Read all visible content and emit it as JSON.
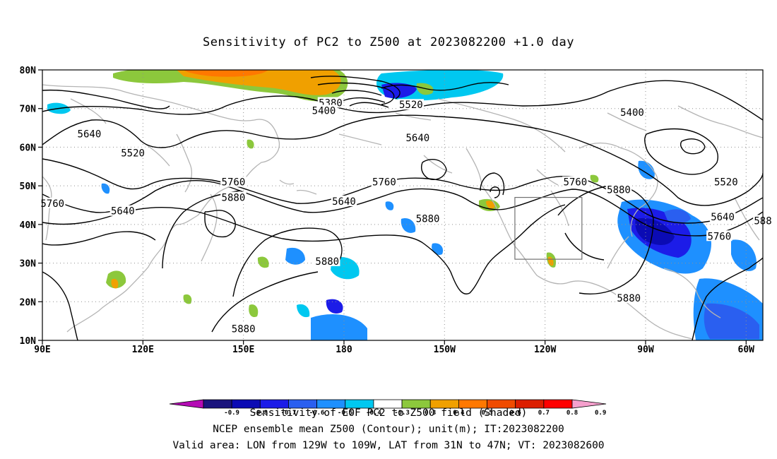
{
  "title": "Sensitivity of PC2 to Z500 at 2023082200 +1.0 day",
  "footer": {
    "line1": "Sensitivity of EOF PC2 to Z500 field (Shaded)",
    "line2": "NCEP ensemble mean Z500 (Contour); unit(m); IT:2023082200",
    "line3": "Valid area: LON from 129W to 109W, LAT from 31N to 47N; VT: 2023082600"
  },
  "map": {
    "lon_range": [
      90,
      305
    ],
    "lat_range": [
      10,
      80
    ],
    "lon_ticks": [
      {
        "lon": 90,
        "label": "90E"
      },
      {
        "lon": 120,
        "label": "120E"
      },
      {
        "lon": 150,
        "label": "150E"
      },
      {
        "lon": 180,
        "label": "180"
      },
      {
        "lon": 210,
        "label": "150W"
      },
      {
        "lon": 240,
        "label": "120W"
      },
      {
        "lon": 270,
        "label": "90W"
      },
      {
        "lon": 300,
        "label": "60W"
      }
    ],
    "lat_ticks": [
      {
        "lat": 10,
        "label": "10N"
      },
      {
        "lat": 20,
        "label": "20N"
      },
      {
        "lat": 30,
        "label": "30N"
      },
      {
        "lat": 40,
        "label": "40N"
      },
      {
        "lat": 50,
        "label": "50N"
      },
      {
        "lat": 60,
        "label": "60N"
      },
      {
        "lat": 70,
        "label": "70N"
      },
      {
        "lat": 80,
        "label": "80N"
      }
    ],
    "valid_box": {
      "lon_min": 231,
      "lon_max": 251,
      "lat_min": 31,
      "lat_max": 47
    },
    "contour_labels": [
      {
        "text": "5640",
        "lon": 104,
        "lat": 63.5
      },
      {
        "text": "5520",
        "lon": 117,
        "lat": 58.5
      },
      {
        "text": "5640",
        "lon": 114,
        "lat": 43.5
      },
      {
        "text": "5760",
        "lon": 93,
        "lat": 45.5
      },
      {
        "text": "5760",
        "lon": 147,
        "lat": 51
      },
      {
        "text": "5880",
        "lon": 147,
        "lat": 47
      },
      {
        "text": "5880",
        "lon": 150,
        "lat": 13
      },
      {
        "text": "5380",
        "lon": 176,
        "lat": 71.5
      },
      {
        "text": "5400",
        "lon": 174,
        "lat": 69.5
      },
      {
        "text": "5520",
        "lon": 200,
        "lat": 71
      },
      {
        "text": "5640",
        "lon": 202,
        "lat": 62.5
      },
      {
        "text": "5640",
        "lon": 180,
        "lat": 46
      },
      {
        "text": "5760",
        "lon": 192,
        "lat": 51
      },
      {
        "text": "5880",
        "lon": 205,
        "lat": 41.5
      },
      {
        "text": "5880",
        "lon": 175,
        "lat": 30.5
      },
      {
        "text": "5760",
        "lon": 249,
        "lat": 51
      },
      {
        "text": "5880",
        "lon": 262,
        "lat": 49
      },
      {
        "text": "5880",
        "lon": 265,
        "lat": 21
      },
      {
        "text": "5400",
        "lon": 266,
        "lat": 69
      },
      {
        "text": "5520",
        "lon": 294,
        "lat": 51
      },
      {
        "text": "5640",
        "lon": 293,
        "lat": 42
      },
      {
        "text": "5760",
        "lon": 292,
        "lat": 37
      },
      {
        "text": "588",
        "lon": 305,
        "lat": 41
      }
    ],
    "colorbar": {
      "labels": [
        "-0.9",
        "-0.8",
        "-0.7",
        "-0.6",
        "-0.5",
        "-0.4",
        "-0.3",
        "0.3",
        "0.4",
        "0.5",
        "0.6",
        "0.7",
        "0.8",
        "0.9"
      ],
      "colors": [
        "#b40bb4",
        "#1a147d",
        "#0b0bb4",
        "#1c1ce8",
        "#2a5ff0",
        "#1e90ff",
        "#00c8f0",
        "#ffffff",
        "#8cc83c",
        "#f0a000",
        "#ff7800",
        "#f04b00",
        "#dc1e00",
        "#ff0000",
        "#f5a0cd"
      ]
    }
  }
}
